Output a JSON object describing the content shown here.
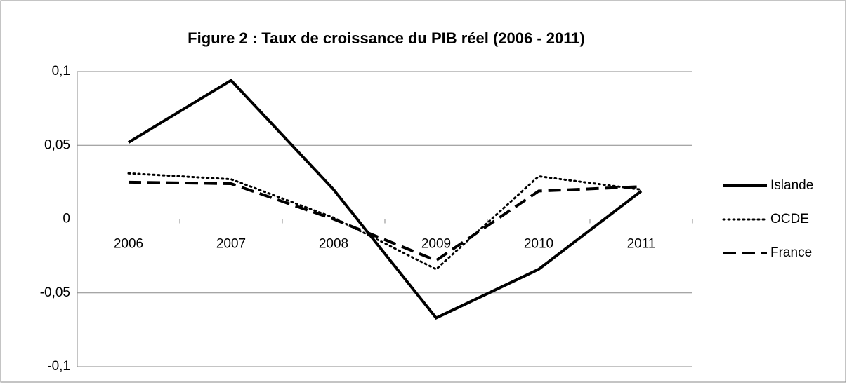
{
  "chart_data": {
    "type": "line",
    "title": "Figure 2 : Taux de croissance du PIB réel (2006 - 2011)",
    "categories": [
      "2006",
      "2007",
      "2008",
      "2009",
      "2010",
      "2011"
    ],
    "series": [
      {
        "name": "Islande",
        "color": "#000000",
        "dash": "solid",
        "values": [
          0.052,
          0.094,
          0.02,
          -0.067,
          -0.034,
          0.019
        ]
      },
      {
        "name": "OCDE",
        "color": "#000000",
        "dash": "dotted",
        "values": [
          0.031,
          0.027,
          0.001,
          -0.034,
          0.029,
          0.02
        ]
      },
      {
        "name": "France",
        "color": "#000000",
        "dash": "dashed",
        "values": [
          0.025,
          0.024,
          0.0,
          -0.028,
          0.019,
          0.022
        ]
      }
    ],
    "ylim": [
      -0.1,
      0.1
    ],
    "yticks": [
      {
        "value": -0.1,
        "label": "-0,1"
      },
      {
        "value": -0.05,
        "label": "-0,05"
      },
      0,
      {
        "value": 0.05,
        "label": "0,05"
      },
      {
        "value": 0.1,
        "label": "0,1"
      }
    ],
    "grid": true,
    "legend": "right"
  }
}
